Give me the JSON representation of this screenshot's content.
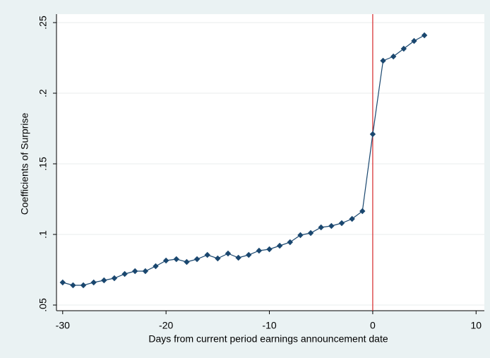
{
  "chart_data": {
    "type": "line",
    "x_label": "Days from current period earnings announcement date",
    "y_label": "Coefficients of Surprise",
    "x": [
      -30,
      -29,
      -28,
      -27,
      -26,
      -25,
      -24,
      -23,
      -22,
      -21,
      -20,
      -19,
      -18,
      -17,
      -16,
      -15,
      -14,
      -13,
      -12,
      -11,
      -10,
      -9,
      -8,
      -7,
      -6,
      -5,
      -4,
      -3,
      -2,
      -1,
      0,
      1,
      2,
      3,
      4,
      5
    ],
    "series": [
      {
        "name": "Coefficients of Surprise",
        "color": "#1a476f",
        "values": [
          0.066,
          0.064,
          0.064,
          0.066,
          0.0675,
          0.069,
          0.072,
          0.074,
          0.074,
          0.0775,
          0.0815,
          0.0825,
          0.0805,
          0.0825,
          0.0855,
          0.083,
          0.0865,
          0.0835,
          0.0855,
          0.0885,
          0.0895,
          0.092,
          0.0945,
          0.0995,
          0.101,
          0.105,
          0.106,
          0.108,
          0.111,
          0.1165,
          0.171,
          0.223,
          0.226,
          0.2315,
          0.237,
          0.241
        ]
      }
    ],
    "xlim": [
      -30.6,
      10.8
    ],
    "ylim": [
      0.046,
      0.256
    ],
    "xticks": [
      -30,
      -20,
      -10,
      0,
      10
    ],
    "yticks": [
      {
        "value": 0.05,
        "label": ".05"
      },
      {
        "value": 0.1,
        "label": ".1"
      },
      {
        "value": 0.15,
        "label": ".15"
      },
      {
        "value": 0.2,
        "label": ".2"
      },
      {
        "value": 0.25,
        "label": ".25"
      }
    ],
    "grid": true,
    "vline": {
      "x": 0,
      "color": "#d62728"
    }
  }
}
